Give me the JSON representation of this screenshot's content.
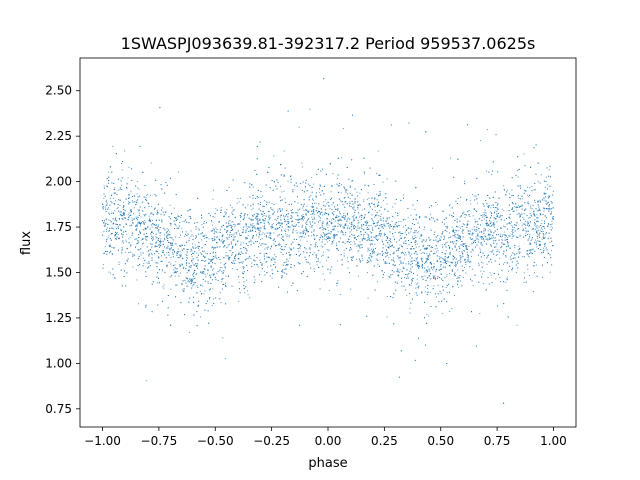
{
  "chart_data": {
    "type": "scatter",
    "title": "1SWASPJ093639.81-392317.2 Period 959537.0625s",
    "xlabel": "phase",
    "ylabel": "flux",
    "xlim": [
      -1.1,
      1.1
    ],
    "ylim": [
      0.65,
      2.68
    ],
    "x_ticks": [
      -1.0,
      -0.75,
      -0.5,
      -0.25,
      0.0,
      0.25,
      0.5,
      0.75,
      1.0
    ],
    "x_tick_labels": [
      "−1.00",
      "−0.75",
      "−0.50",
      "−0.25",
      "0.00",
      "0.25",
      "0.50",
      "0.75",
      "1.00"
    ],
    "y_ticks": [
      0.75,
      1.0,
      1.25,
      1.5,
      1.75,
      2.0,
      2.25,
      2.5
    ],
    "y_tick_labels": [
      "0.75",
      "1.00",
      "1.25",
      "1.50",
      "1.75",
      "2.00",
      "2.25",
      "2.50"
    ],
    "series_color": "#1f77b4",
    "grid": false,
    "series": [
      {
        "x_range": [
          -1.0,
          1.0
        ],
        "phase_profile": [
          {
            "phase": -1.0,
            "flux": 1.78
          },
          {
            "phase": -0.9,
            "flux": 1.76
          },
          {
            "phase": -0.75,
            "flux": 1.7
          },
          {
            "phase": -0.62,
            "flux": 1.58
          },
          {
            "phase": -0.55,
            "flux": 1.57
          },
          {
            "phase": -0.45,
            "flux": 1.64
          },
          {
            "phase": -0.3,
            "flux": 1.72
          },
          {
            "phase": -0.15,
            "flux": 1.74
          },
          {
            "phase": 0.0,
            "flux": 1.78
          },
          {
            "phase": 0.1,
            "flux": 1.76
          },
          {
            "phase": 0.25,
            "flux": 1.7
          },
          {
            "phase": 0.38,
            "flux": 1.58
          },
          {
            "phase": 0.45,
            "flux": 1.57
          },
          {
            "phase": 0.55,
            "flux": 1.64
          },
          {
            "phase": 0.7,
            "flux": 1.72
          },
          {
            "phase": 0.85,
            "flux": 1.74
          },
          {
            "phase": 1.0,
            "flux": 1.78
          }
        ],
        "scatter_sd": 0.13,
        "flux_min": 0.73,
        "flux_max": 2.6
      }
    ]
  }
}
